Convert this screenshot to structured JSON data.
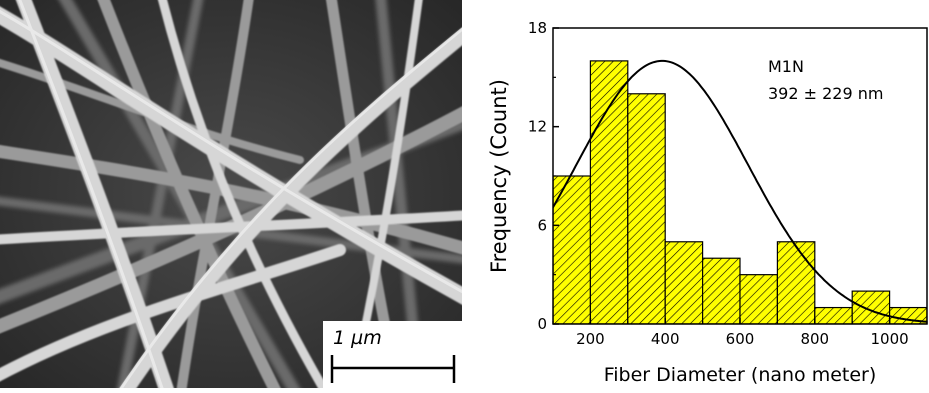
{
  "sem": {
    "scale_bar_label": "1 µm"
  },
  "chart_data": {
    "type": "bar",
    "subtype": "histogram",
    "sample_label": "M1N",
    "stats_label": "392 ± 229 nm",
    "xlabel": "Fiber Diameter (nano meter)",
    "ylabel": "Frequency (Count)",
    "xlim": [
      100,
      1100
    ],
    "ylim": [
      0,
      18
    ],
    "x_ticks": [
      200,
      400,
      600,
      800,
      1000
    ],
    "y_ticks": [
      0,
      6,
      12,
      18
    ],
    "bin_width": 100,
    "bins": [
      {
        "start": 100,
        "end": 200,
        "count": 9
      },
      {
        "start": 200,
        "end": 300,
        "count": 16
      },
      {
        "start": 300,
        "end": 400,
        "count": 14
      },
      {
        "start": 400,
        "end": 500,
        "count": 5
      },
      {
        "start": 500,
        "end": 600,
        "count": 4
      },
      {
        "start": 600,
        "end": 700,
        "count": 3
      },
      {
        "start": 700,
        "end": 800,
        "count": 5
      },
      {
        "start": 800,
        "end": 900,
        "count": 1
      },
      {
        "start": 900,
        "end": 1000,
        "count": 2
      },
      {
        "start": 1000,
        "end": 1100,
        "count": 1
      }
    ],
    "fit": {
      "type": "normal",
      "mean": 392,
      "std": 229,
      "peak": 16
    },
    "bar_fill": "#ffff00",
    "hatch_color": "#000000",
    "curve_color": "#000000"
  }
}
